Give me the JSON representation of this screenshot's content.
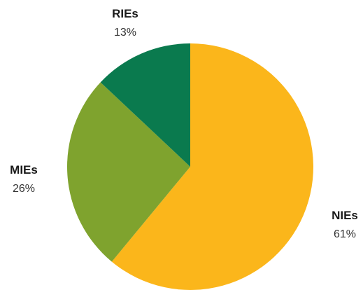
{
  "chart_data": {
    "type": "pie",
    "title": "",
    "start": "12 o'clock, clockwise",
    "slices": [
      {
        "label": "NIEs",
        "value": 61,
        "display": "61%",
        "color": "#FBB61B"
      },
      {
        "label": "MIEs",
        "value": 26,
        "display": "26%",
        "color": "#7FA32E"
      },
      {
        "label": "RIEs",
        "value": 13,
        "display": "13%",
        "color": "#0A7A4E"
      }
    ],
    "legend": "none"
  }
}
